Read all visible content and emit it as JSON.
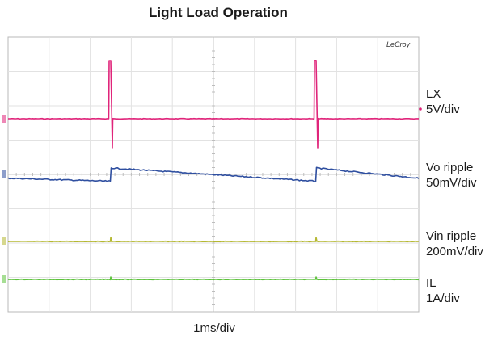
{
  "brand": "LeCroy",
  "chart_data": {
    "type": "line",
    "title": "Light Load Operation",
    "xlabel": "1ms/div",
    "grid": true,
    "divisions": {
      "x": 10,
      "y": 8
    },
    "x_unit": "ms",
    "xlim": [
      0,
      10
    ],
    "switching_events_ms": [
      2.5,
      7.5
    ],
    "series": [
      {
        "name": "LX",
        "scale": "5V/div",
        "color": "#e0247a",
        "x": [
          0,
          2.45,
          2.46,
          2.5,
          2.54,
          2.55,
          7.45,
          7.46,
          7.5,
          7.54,
          7.55,
          10
        ],
        "y": [
          0,
          0,
          10,
          10,
          -5,
          0,
          0,
          10,
          10,
          -5,
          0,
          0
        ]
      },
      {
        "name": "Vo ripple",
        "scale": "50mV/div",
        "color": "#2f4fa0",
        "x": [
          0,
          2.49,
          2.51,
          7.49,
          7.51,
          10
        ],
        "y": [
          -25,
          -45,
          42,
          -45,
          42,
          -25
        ]
      },
      {
        "name": "Vin ripple",
        "scale": "200mV/div",
        "color": "#b5b832",
        "x": [
          0,
          2.49,
          2.5,
          2.52,
          7.49,
          7.5,
          7.52,
          10
        ],
        "y": [
          0,
          0,
          10,
          0,
          0,
          10,
          0,
          0
        ]
      },
      {
        "name": "IL",
        "scale": "1A/div",
        "color": "#5cc23c",
        "x": [
          0,
          2.49,
          2.5,
          2.52,
          7.49,
          7.5,
          7.52,
          10
        ],
        "y": [
          0,
          0,
          0.3,
          0,
          0,
          0.3,
          0,
          0
        ]
      }
    ]
  }
}
